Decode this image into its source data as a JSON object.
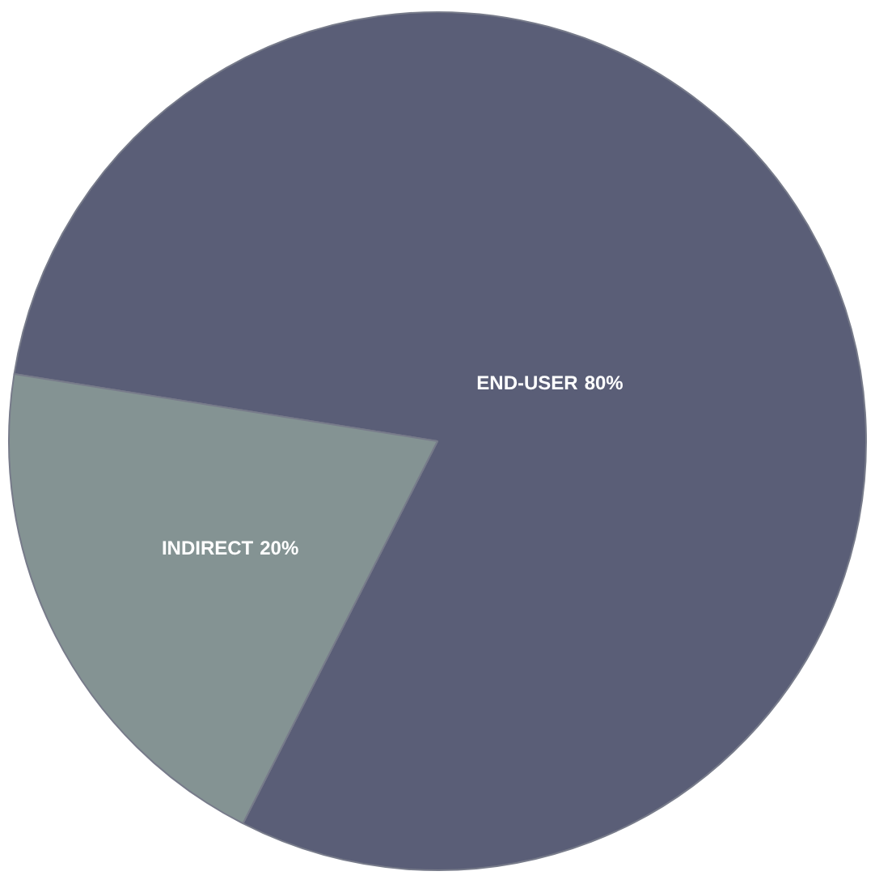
{
  "chart_data": {
    "type": "pie",
    "categories": [
      "END-USER",
      "INDIRECT"
    ],
    "values": [
      80,
      20
    ],
    "value_labels": [
      "80%",
      "20%"
    ],
    "colors": [
      "#5a5e77",
      "#849393"
    ]
  }
}
